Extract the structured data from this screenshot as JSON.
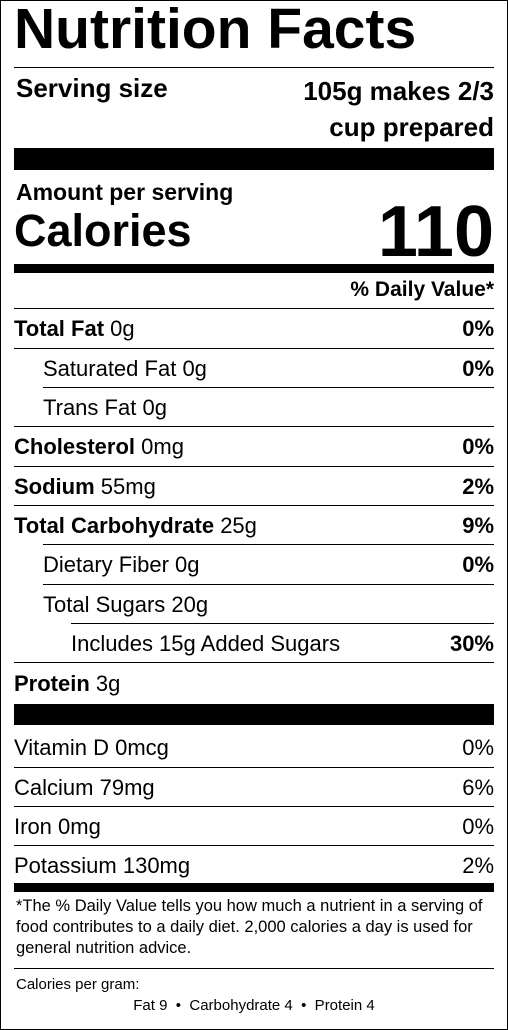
{
  "title": "Nutrition Facts",
  "serving": {
    "label": "Serving size",
    "value_line1": "105g makes 2/3",
    "value_line2": "cup prepared"
  },
  "calories": {
    "amount_label": "Amount per serving",
    "label": "Calories",
    "value": "110"
  },
  "dv_header": "% Daily Value*",
  "nutrients": [
    {
      "name": "Total Fat",
      "amount": "0g",
      "dv": "0%"
    },
    {
      "name": "Saturated Fat",
      "amount": "0g",
      "dv": "0%"
    },
    {
      "name": "Trans Fat",
      "amount": "0g",
      "dv": ""
    },
    {
      "name": "Cholesterol",
      "amount": "0mg",
      "dv": "0%"
    },
    {
      "name": "Sodium",
      "amount": "55mg",
      "dv": "2%"
    },
    {
      "name": "Total Carbohydrate",
      "amount": "25g",
      "dv": "9%"
    },
    {
      "name": "Dietary Fiber",
      "amount": "0g",
      "dv": "0%"
    },
    {
      "name": "Total Sugars",
      "amount": "20g",
      "dv": ""
    },
    {
      "name": "Includes 15g Added Sugars",
      "amount": "",
      "dv": "30%"
    },
    {
      "name": "Protein",
      "amount": "3g",
      "dv": ""
    }
  ],
  "vitamins": [
    {
      "name": "Vitamin D",
      "amount": "0mcg",
      "dv": "0%"
    },
    {
      "name": "Calcium",
      "amount": "79mg",
      "dv": "6%"
    },
    {
      "name": "Iron",
      "amount": "0mg",
      "dv": "0%"
    },
    {
      "name": "Potassium",
      "amount": "130mg",
      "dv": "2%"
    }
  ],
  "footnote": "*The % Daily Value tells you how much a nutrient in a serving of food contributes to a daily diet. 2,000 calories a day is used for general nutrition advice.",
  "calories_per_gram": {
    "label": "Calories per gram:",
    "values": "Fat 9  •  Carbohydrate 4  •  Protein 4"
  }
}
